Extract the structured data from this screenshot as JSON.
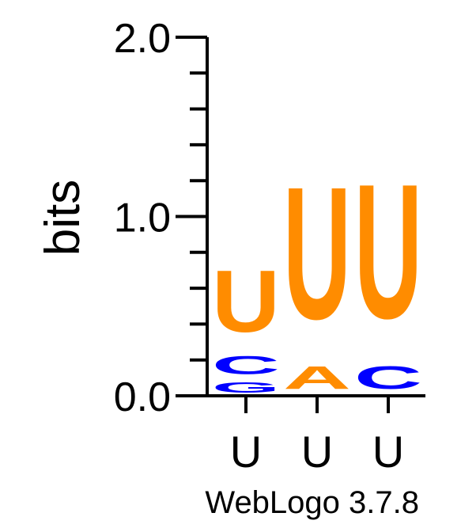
{
  "chart_data": {
    "type": "sequence_logo",
    "ylabel": "bits",
    "ylim": [
      0,
      2.0
    ],
    "yticks": [
      "0.0",
      "1.0",
      "2.0"
    ],
    "positions": [
      {
        "label": "U",
        "letters": [
          {
            "base": "G",
            "bits": 0.09,
            "color": "#0000ff"
          },
          {
            "base": "C",
            "bits": 0.16,
            "color": "#0000ff"
          },
          {
            "base": "U",
            "bits": 0.55,
            "color": "#ff8c00"
          }
        ]
      },
      {
        "label": "U",
        "letters": [
          {
            "base": "A",
            "bits": 0.2,
            "color": "#ff8c00"
          },
          {
            "base": "U",
            "bits": 1.18,
            "color": "#ff8c00"
          }
        ]
      },
      {
        "label": "U",
        "letters": [
          {
            "base": "C",
            "bits": 0.2,
            "color": "#0000ff"
          },
          {
            "base": "U",
            "bits": 1.2,
            "color": "#ff8c00"
          }
        ]
      }
    ]
  },
  "footer": "WebLogo 3.7.8"
}
